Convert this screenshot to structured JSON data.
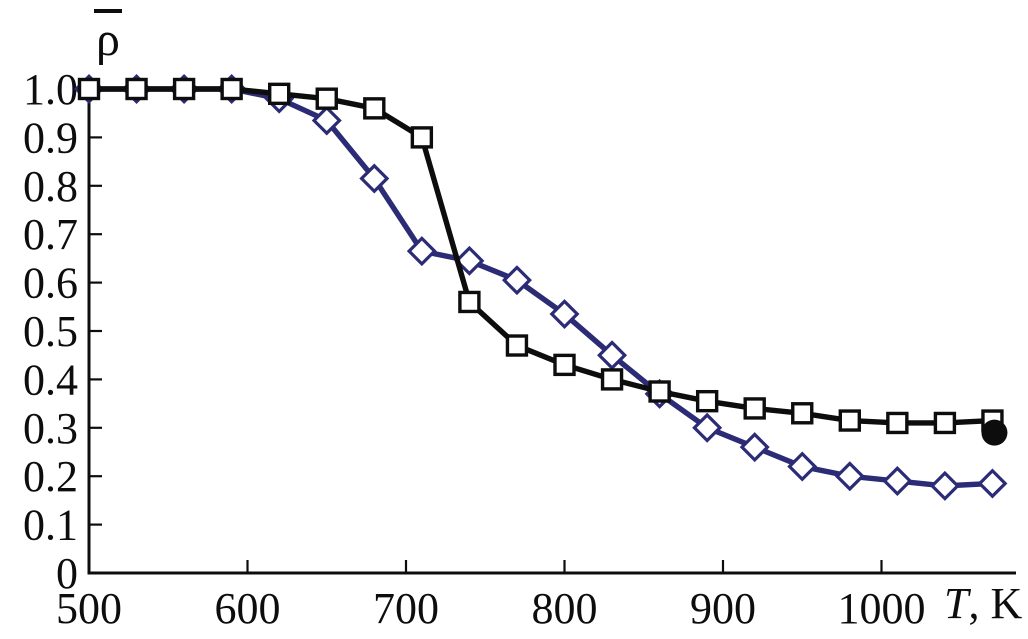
{
  "figure": {
    "ylabel": "ρ̄",
    "ylabel_base": "ρ",
    "xlabel": "T, K",
    "xlabel_var": "T",
    "xlabel_rest": ", K"
  },
  "chart_data": {
    "type": "line",
    "title": "",
    "xlabel": "T, K",
    "ylabel": "ρ̄",
    "grid": false,
    "legend": "none",
    "xlim": [
      500,
      1085
    ],
    "ylim": [
      0,
      1.05
    ],
    "x_ticks": [
      500,
      600,
      700,
      800,
      900,
      1000
    ],
    "y_ticks": [
      0,
      0.1,
      0.2,
      0.3,
      0.4,
      0.5,
      0.6,
      0.7,
      0.8,
      0.9,
      1.0
    ],
    "y_tick_labels": [
      "0",
      "0.1",
      "0.2",
      "0.3",
      "0.4",
      "0.5",
      "0.6",
      "0.7",
      "0.8",
      "0.9",
      "1.0"
    ],
    "axis_color": "#0d0d0d",
    "x": [
      500,
      530,
      560,
      590,
      620,
      650,
      680,
      710,
      740,
      770,
      800,
      830,
      860,
      890,
      920,
      950,
      980,
      1010,
      1040,
      1070
    ],
    "series": [
      {
        "name": "open-diamonds-blue",
        "marker": "diamond",
        "color": "#2b2b76",
        "values": [
          1.0,
          1.0,
          1.0,
          1.0,
          0.98,
          0.935,
          0.815,
          0.665,
          0.645,
          0.605,
          0.535,
          0.45,
          0.37,
          0.3,
          0.26,
          0.22,
          0.2,
          0.19,
          0.18,
          0.185
        ]
      },
      {
        "name": "open-squares-black",
        "marker": "square",
        "color": "#0d0d0d",
        "values": [
          1.0,
          1.0,
          1.0,
          1.0,
          0.99,
          0.98,
          0.96,
          0.9,
          0.56,
          0.47,
          0.43,
          0.4,
          0.375,
          0.355,
          0.34,
          0.33,
          0.315,
          0.31,
          0.31,
          0.315
        ]
      }
    ],
    "extra_point": {
      "name": "filled-circle-black",
      "marker": "filled-circle",
      "color": "#0d0d0d",
      "x": 1070,
      "y": 0.29
    }
  }
}
